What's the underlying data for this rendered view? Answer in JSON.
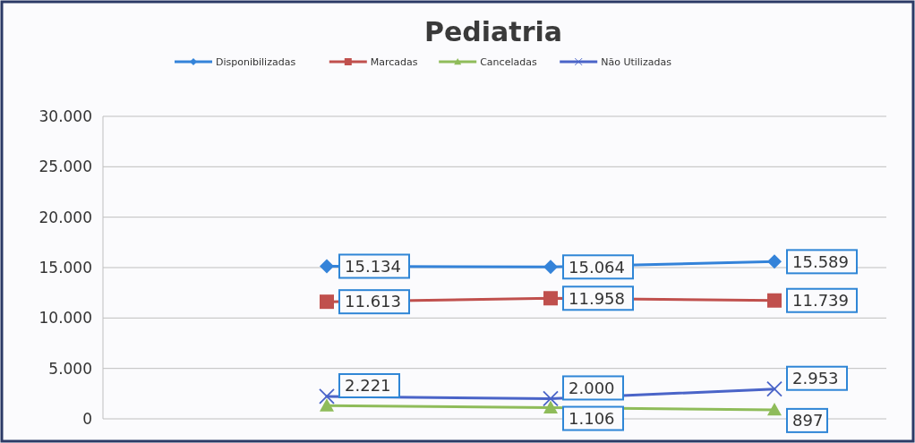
{
  "chart_data": {
    "type": "line",
    "title": "Pediatria",
    "categories": [
      null,
      null,
      null,
      null
    ],
    "series": [
      {
        "name": "Disponibilizadas",
        "color": "#3483d9",
        "marker": "diamond",
        "values": [
          null,
          15134,
          15064,
          15589
        ],
        "value_labels": [
          null,
          "15.134",
          "15.064",
          "15.589"
        ]
      },
      {
        "name": "Marcadas",
        "color": "#c0504d",
        "marker": "square",
        "values": [
          null,
          11613,
          11958,
          11739
        ],
        "value_labels": [
          null,
          "11.613",
          "11.958",
          "11.739"
        ]
      },
      {
        "name": "Canceladas",
        "color": "#8fbc5a",
        "marker": "triangle",
        "values": [
          null,
          1300,
          1106,
          897
        ],
        "value_labels": [
          null,
          null,
          "1.106",
          "897"
        ]
      },
      {
        "name": "Não Utilizadas",
        "color": "#4a64c8",
        "marker": "cross",
        "values": [
          null,
          2221,
          2000,
          2953
        ],
        "value_labels": [
          null,
          "2.221",
          "2.000",
          "2.953"
        ]
      }
    ],
    "ylim": [
      0,
      30000
    ],
    "yticks": [
      {
        "value": 0,
        "label": "0"
      },
      {
        "value": 5000,
        "label": "5.000"
      },
      {
        "value": 10000,
        "label": "10.000"
      },
      {
        "value": 15000,
        "label": "15.000"
      },
      {
        "value": 20000,
        "label": "20.000"
      },
      {
        "value": 25000,
        "label": "25.000"
      },
      {
        "value": 30000,
        "label": "30.000"
      }
    ],
    "grid": "y",
    "legend": "top"
  }
}
